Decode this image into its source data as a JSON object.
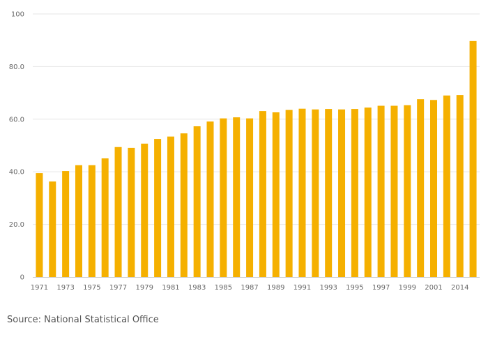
{
  "chart_data": {
    "type": "bar",
    "categories": [
      "1971",
      "1972",
      "1973",
      "1974",
      "1975",
      "1976",
      "1977",
      "1978",
      "1979",
      "1980",
      "1981",
      "1982",
      "1983",
      "1984",
      "1985",
      "1986",
      "1987",
      "1988",
      "1989",
      "1990",
      "1991",
      "1992",
      "1993",
      "1994",
      "1995",
      "1996",
      "1997",
      "1998",
      "1999",
      "2000",
      "2001",
      "2013",
      "2014",
      "2015"
    ],
    "x_tick_labels": [
      "1971",
      "1973",
      "1975",
      "1977",
      "1979",
      "1981",
      "1983",
      "1985",
      "1987",
      "1989",
      "1991",
      "1993",
      "1995",
      "1997",
      "1999",
      "2001",
      "2014"
    ],
    "values": [
      39.5,
      36.3,
      40.3,
      42.5,
      42.5,
      45.1,
      49.4,
      49.1,
      50.7,
      52.5,
      53.4,
      54.6,
      57.3,
      59.1,
      60.3,
      60.7,
      60.3,
      63.1,
      62.6,
      63.5,
      64.0,
      63.7,
      63.9,
      63.7,
      63.9,
      64.4,
      65.1,
      65.1,
      65.3,
      67.6,
      67.3,
      69.0,
      69.2,
      89.7
    ],
    "y_tick_labels": [
      "0",
      "20.0",
      "40.0",
      "60.0",
      "80.0",
      "100"
    ],
    "ylim": [
      0,
      100
    ],
    "bar_color": "#f5b000",
    "grid": true,
    "title": "",
    "xlabel": "",
    "ylabel": ""
  },
  "footer": {
    "source": "Source: National Statistical Office"
  }
}
